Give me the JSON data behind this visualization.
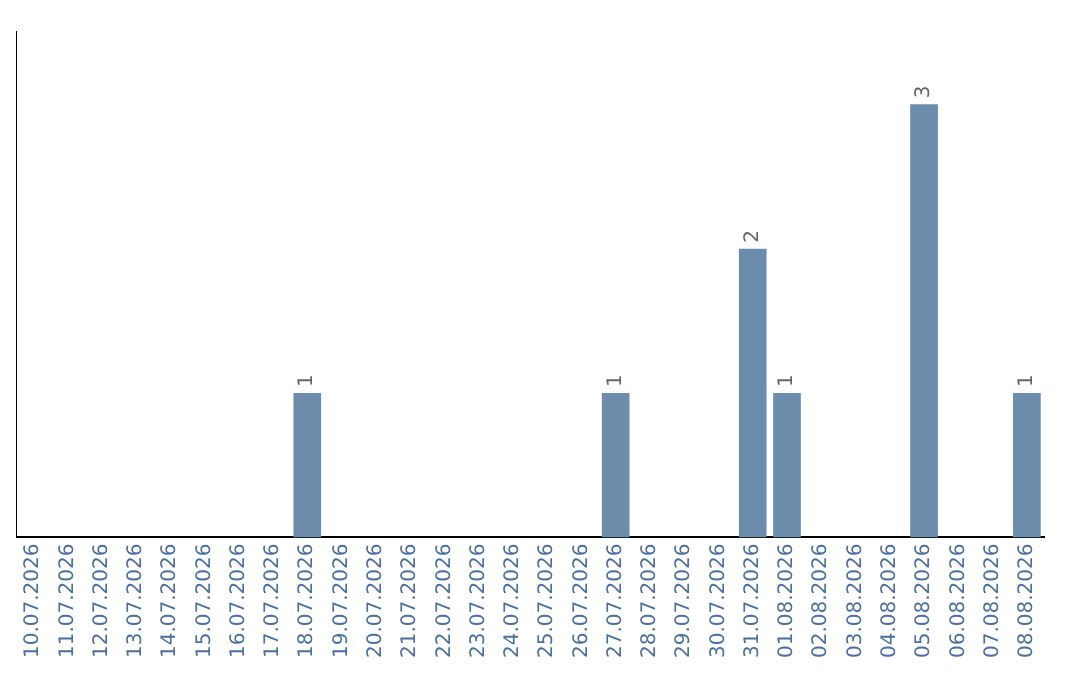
{
  "chart_data": {
    "type": "bar",
    "categories": [
      "10.07.2026",
      "11.07.2026",
      "12.07.2026",
      "13.07.2026",
      "14.07.2026",
      "15.07.2026",
      "16.07.2026",
      "17.07.2026",
      "18.07.2026",
      "19.07.2026",
      "20.07.2026",
      "21.07.2026",
      "22.07.2026",
      "23.07.2026",
      "24.07.2026",
      "25.07.2026",
      "26.07.2026",
      "27.07.2026",
      "28.07.2026",
      "29.07.2026",
      "30.07.2026",
      "31.07.2026",
      "01.08.2026",
      "02.08.2026",
      "03.08.2026",
      "04.08.2026",
      "05.08.2026",
      "06.08.2026",
      "07.08.2026",
      "08.08.2026"
    ],
    "values": [
      0,
      0,
      0,
      0,
      0,
      0,
      0,
      0,
      1,
      0,
      0,
      0,
      0,
      0,
      0,
      0,
      0,
      1,
      0,
      0,
      0,
      2,
      1,
      0,
      0,
      0,
      3,
      0,
      0,
      1
    ],
    "value_labels": [
      null,
      null,
      null,
      null,
      null,
      null,
      null,
      null,
      "1",
      null,
      null,
      null,
      null,
      null,
      null,
      null,
      null,
      "1",
      null,
      null,
      null,
      "2",
      "1",
      null,
      null,
      null,
      "3",
      null,
      null,
      "1"
    ],
    "color": "#6b8cab",
    "grid": false,
    "legend": false,
    "tick_labels": "x"
  }
}
